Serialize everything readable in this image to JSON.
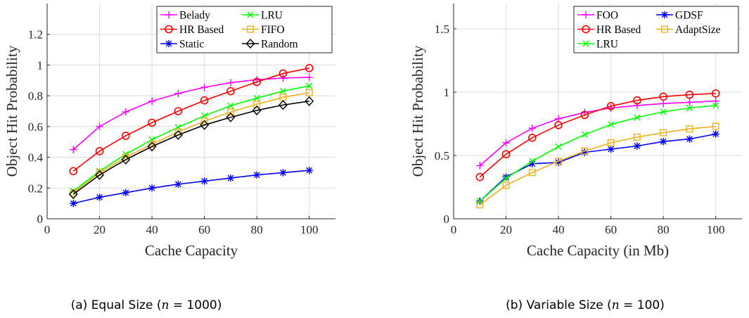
{
  "chart_data": [
    {
      "type": "line",
      "caption": "(a) Equal Size (n = 1000)",
      "caption_parts": [
        "(a) Equal Size (",
        "n",
        " = 1000)"
      ],
      "xlabel": "Cache Capacity",
      "ylabel": "Object Hit Probability",
      "xlim": [
        0,
        110
      ],
      "ylim": [
        0,
        1.4
      ],
      "xticks": [
        0,
        20,
        40,
        60,
        80,
        100
      ],
      "yticks": [
        0,
        0.2,
        0.4,
        0.6,
        0.8,
        1,
        1.2
      ],
      "ytick_labels": [
        "0",
        "0.2",
        "0.4",
        "0.6",
        "0.8",
        "1",
        "1.2"
      ],
      "grid": true,
      "legend_position": "top-right",
      "x": [
        10,
        20,
        30,
        40,
        50,
        60,
        70,
        80,
        90,
        100
      ],
      "series": [
        {
          "name": "Belady",
          "color": "#ff00ff",
          "marker": "plus",
          "values": [
            0.45,
            0.6,
            0.695,
            0.765,
            0.815,
            0.855,
            0.885,
            0.905,
            0.915,
            0.92
          ]
        },
        {
          "name": "LRU",
          "color": "#00ff00",
          "marker": "x",
          "values": [
            0.18,
            0.31,
            0.42,
            0.515,
            0.595,
            0.67,
            0.735,
            0.785,
            0.83,
            0.865
          ]
        },
        {
          "name": "HR Based",
          "color": "#ff0000",
          "marker": "circle",
          "values": [
            0.31,
            0.44,
            0.54,
            0.625,
            0.7,
            0.77,
            0.83,
            0.89,
            0.945,
            0.98
          ]
        },
        {
          "name": "FIFO",
          "color": "#edb120",
          "marker": "square",
          "values": [
            0.17,
            0.3,
            0.4,
            0.485,
            0.565,
            0.635,
            0.695,
            0.745,
            0.79,
            0.82
          ]
        },
        {
          "name": "Static",
          "color": "#0000ff",
          "marker": "star",
          "values": [
            0.1,
            0.14,
            0.17,
            0.2,
            0.225,
            0.245,
            0.265,
            0.285,
            0.3,
            0.315
          ]
        },
        {
          "name": "Random",
          "color": "#000000",
          "marker": "diamond",
          "values": [
            0.16,
            0.285,
            0.385,
            0.47,
            0.545,
            0.61,
            0.66,
            0.705,
            0.74,
            0.765
          ]
        }
      ]
    },
    {
      "type": "line",
      "caption": "(b) Variable Size (n = 100)",
      "caption_parts": [
        "(b) Variable Size (",
        "n",
        " = 100)"
      ],
      "xlabel": "Cache Capacity (in Mb)",
      "ylabel": "Object Hit Probability",
      "xlim": [
        0,
        110
      ],
      "ylim": [
        0,
        1.7
      ],
      "xticks": [
        0,
        20,
        40,
        60,
        80,
        100
      ],
      "yticks": [
        0,
        0.5,
        1,
        1.5
      ],
      "ytick_labels": [
        "0",
        "0.5",
        "1",
        "1.5"
      ],
      "grid": true,
      "legend_position": "top-right",
      "x": [
        10,
        20,
        30,
        40,
        50,
        60,
        70,
        80,
        90,
        100
      ],
      "series": [
        {
          "name": "FOO",
          "color": "#ff00ff",
          "marker": "plus",
          "values": [
            0.42,
            0.6,
            0.715,
            0.79,
            0.84,
            0.875,
            0.895,
            0.91,
            0.92,
            0.93
          ]
        },
        {
          "name": "GDSF",
          "color": "#0000ff",
          "marker": "star",
          "values": [
            0.14,
            0.33,
            0.435,
            0.445,
            0.525,
            0.55,
            0.575,
            0.61,
            0.63,
            0.67
          ]
        },
        {
          "name": "HR Based",
          "color": "#ff0000",
          "marker": "circle",
          "values": [
            0.33,
            0.51,
            0.64,
            0.74,
            0.82,
            0.89,
            0.935,
            0.965,
            0.98,
            0.99
          ]
        },
        {
          "name": "AdaptSize",
          "color": "#edb120",
          "marker": "square",
          "values": [
            0.11,
            0.265,
            0.365,
            0.455,
            0.535,
            0.6,
            0.645,
            0.68,
            0.71,
            0.73
          ]
        },
        {
          "name": "LRU",
          "color": "#00ff00",
          "marker": "x",
          "values": [
            0.14,
            0.32,
            0.455,
            0.57,
            0.665,
            0.745,
            0.8,
            0.845,
            0.875,
            0.895
          ]
        }
      ]
    }
  ]
}
